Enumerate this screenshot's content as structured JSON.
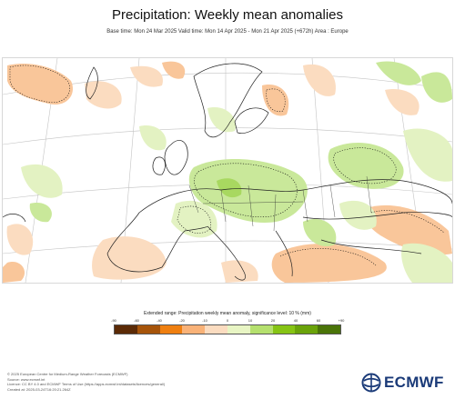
{
  "header": {
    "title": "Precipitation: Weekly mean anomalies",
    "subtitle": "Base time: Mon 24 Mar 2025 Valid time: Mon 14 Apr 2025 - Mon 21 Apr 2025 (+672h) Area : Europe"
  },
  "legend": {
    "title": "Extended range: Precipitation weekly mean anomaly, significance level: 10 % (mm)",
    "ticks": [
      "-90",
      "-60",
      "-40",
      "-20",
      "-10",
      "0",
      "10",
      "20",
      "40",
      "60",
      "+90"
    ],
    "colors": [
      "#5b2a06",
      "#a6540a",
      "#ef7f10",
      "#f9b278",
      "#fbdcc0",
      "#e8f5c4",
      "#b5e06e",
      "#86c414",
      "#6aa30a",
      "#4a7408"
    ]
  },
  "footer": {
    "lines": [
      "© 2025 European Centre for Medium-Range Weather Forecasts (ECMWF)",
      "Source: www.ecmwf.int",
      "Licence: CC BY 4.0 and ECMWF Terms of Use (https://apps.ecmwf.int/datasets/licences/general/)",
      "Created at: 2025-03-24T16:20:21.264Z"
    ]
  },
  "logo": {
    "text": "ECMWF"
  },
  "map_colors": {
    "ocean": "#ffffff",
    "dry_light": "#fbdcc0",
    "dry_mid": "#f9c69a",
    "wet_light": "#e3f2c2",
    "wet_mid": "#c9e89a",
    "wet_strong": "#a8d860",
    "border": "#222222",
    "graticule": "#bdbdbd"
  }
}
